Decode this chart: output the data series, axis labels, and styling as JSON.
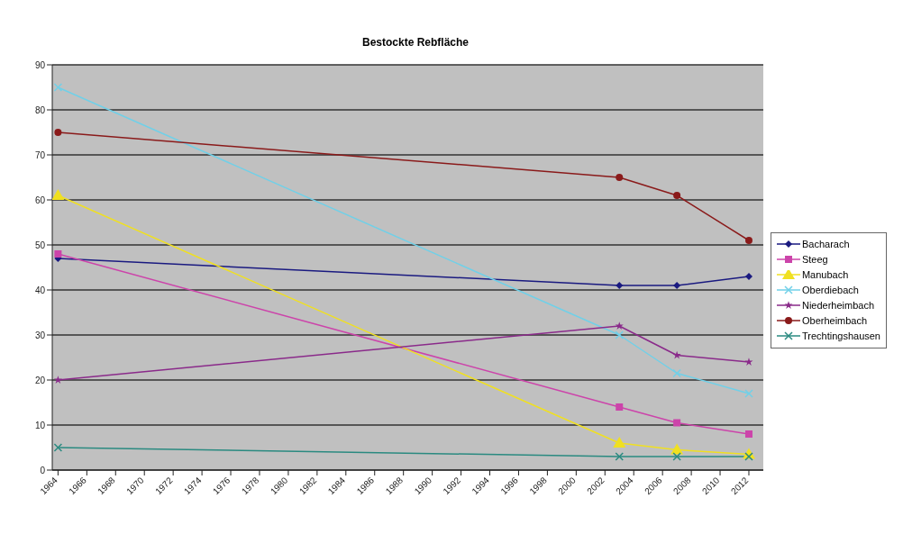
{
  "chart_data": {
    "type": "line",
    "title": "Bestockte Rebfläche",
    "x": [
      1964,
      2003,
      2007,
      2012
    ],
    "series": [
      {
        "name": "Bacharach",
        "color": "#1a1a80",
        "marker": "diamond",
        "values": [
          47,
          41,
          41,
          43
        ]
      },
      {
        "name": "Steeg",
        "color": "#cc44aa",
        "marker": "square",
        "values": [
          48,
          14,
          10.5,
          8
        ]
      },
      {
        "name": "Manubach",
        "color": "#f0e020",
        "marker": "triangle",
        "values": [
          61,
          6,
          4.5,
          3.5
        ]
      },
      {
        "name": "Oberdiebach",
        "color": "#70d0e8",
        "marker": "cross",
        "values": [
          85,
          30,
          21.5,
          17
        ]
      },
      {
        "name": "Niederheimbach",
        "color": "#8a2a8a",
        "marker": "star",
        "values": [
          20,
          32,
          25.5,
          24
        ]
      },
      {
        "name": "Oberheimbach",
        "color": "#8a1a1a",
        "marker": "circle",
        "values": [
          75,
          65,
          61,
          51
        ]
      },
      {
        "name": "Trechtingshausen",
        "color": "#2a8a80",
        "marker": "cross",
        "values": [
          5,
          3,
          3,
          3
        ]
      }
    ],
    "xlim": [
      1963.6,
      2013
    ],
    "xticks": [
      1964,
      1966,
      1968,
      1970,
      1972,
      1974,
      1976,
      1978,
      1980,
      1982,
      1984,
      1986,
      1988,
      1990,
      1992,
      1994,
      1996,
      1998,
      2000,
      2002,
      2004,
      2006,
      2008,
      2010,
      2012
    ],
    "ylim": [
      0,
      90
    ],
    "yticks": [
      0,
      10,
      20,
      30,
      40,
      50,
      60,
      70,
      80,
      90
    ],
    "grid": "y",
    "legend": "right",
    "line_style": "solid"
  }
}
